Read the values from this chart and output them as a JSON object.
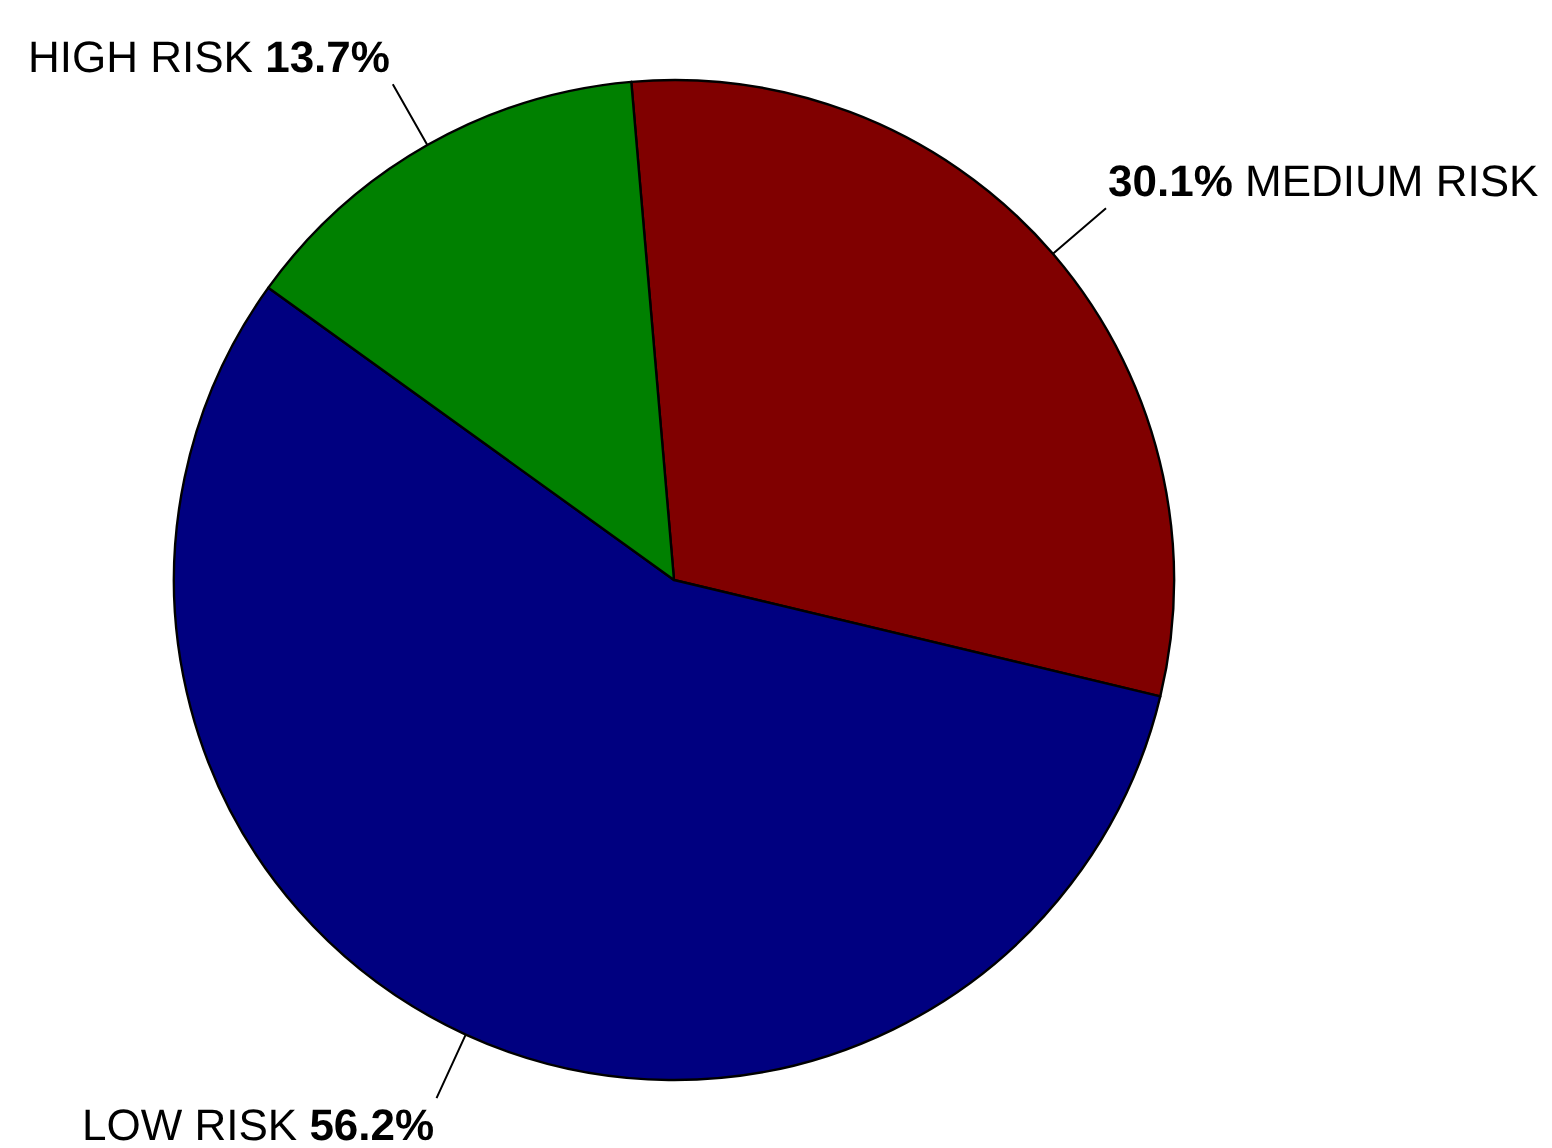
{
  "chart_data": {
    "type": "pie",
    "categories": [
      "MEDIUM RISK",
      "LOW RISK",
      "HIGH RISK"
    ],
    "values": [
      30.1,
      56.2,
      13.7
    ],
    "colors": [
      "#800000",
      "#000080",
      "#008000"
    ],
    "value_labels": [
      "30.1%",
      "56.2%",
      "13.7%"
    ]
  }
}
